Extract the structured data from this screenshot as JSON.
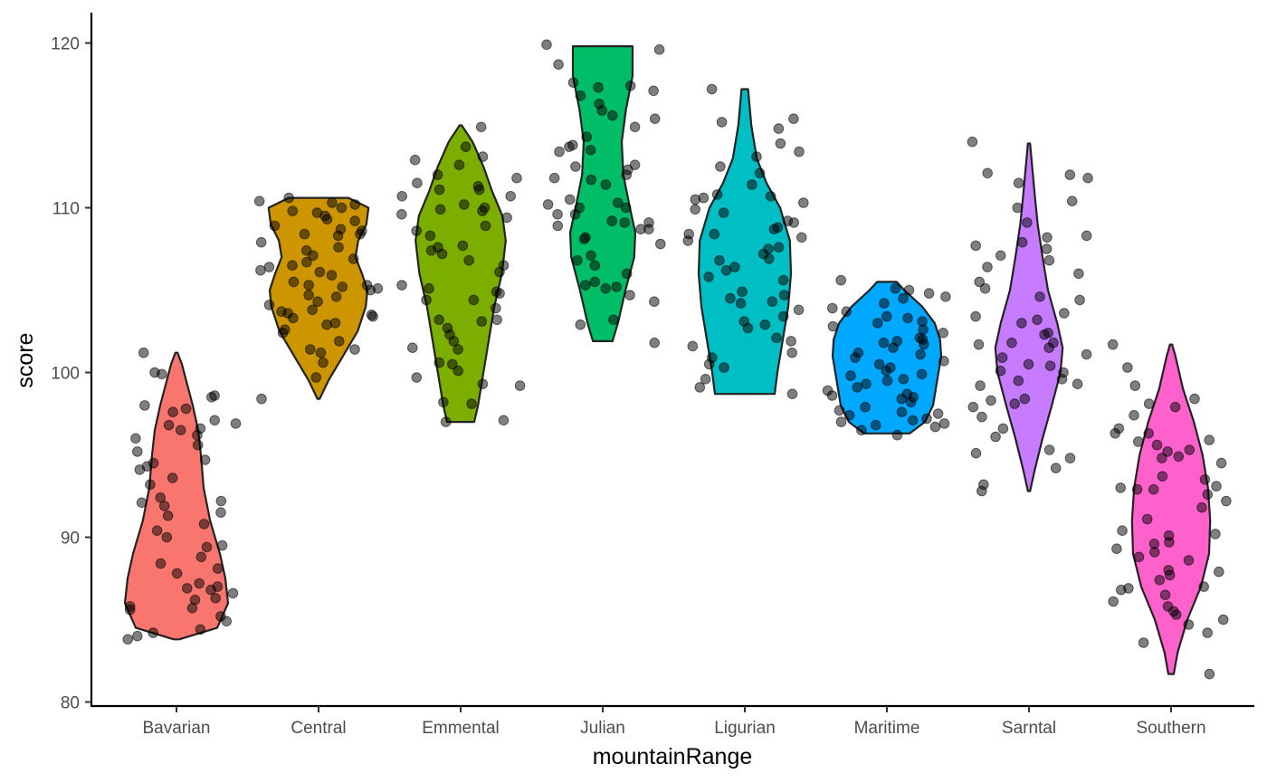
{
  "chart_data": {
    "type": "violin",
    "xlabel": "mountainRange",
    "ylabel": "score",
    "ylim": [
      80,
      120
    ],
    "yticks": [
      80,
      90,
      100,
      110,
      120
    ],
    "categories": [
      "Bavarian",
      "Central",
      "Emmental",
      "Julian",
      "Ligurian",
      "Maritime",
      "Sarntal",
      "Southern"
    ],
    "colors": [
      "#F8766D",
      "#CD9600",
      "#7CAE00",
      "#00BE67",
      "#00BFC4",
      "#00A9FF",
      "#C77CFF",
      "#FF61CC"
    ],
    "grid": false,
    "legend": "none",
    "violins": [
      {
        "min": 83.8,
        "max": 101.2,
        "profile": [
          [
            83.8,
            0.05
          ],
          [
            84.5,
            0.75
          ],
          [
            86,
            0.95
          ],
          [
            87.5,
            0.9
          ],
          [
            89,
            0.8
          ],
          [
            91,
            0.62
          ],
          [
            93,
            0.5
          ],
          [
            95,
            0.45
          ],
          [
            96.5,
            0.4
          ],
          [
            98,
            0.3
          ],
          [
            99.5,
            0.18
          ],
          [
            100.5,
            0.1
          ],
          [
            101.2,
            0.02
          ]
        ]
      },
      {
        "min": 98.4,
        "max": 110.6,
        "profile": [
          [
            98.4,
            0.02
          ],
          [
            99.5,
            0.18
          ],
          [
            101,
            0.45
          ],
          [
            102.5,
            0.72
          ],
          [
            104,
            0.87
          ],
          [
            105,
            0.9
          ],
          [
            106,
            0.8
          ],
          [
            107,
            0.68
          ],
          [
            108,
            0.73
          ],
          [
            109,
            0.88
          ],
          [
            110,
            0.92
          ],
          [
            110.6,
            0.55
          ]
        ]
      },
      {
        "min": 97,
        "max": 115,
        "profile": [
          [
            97,
            0.25
          ],
          [
            98,
            0.32
          ],
          [
            100,
            0.42
          ],
          [
            102,
            0.52
          ],
          [
            104,
            0.62
          ],
          [
            106,
            0.76
          ],
          [
            108,
            0.83
          ],
          [
            109.5,
            0.77
          ],
          [
            111,
            0.58
          ],
          [
            112.5,
            0.42
          ],
          [
            114,
            0.22
          ],
          [
            115,
            0.02
          ]
        ]
      },
      {
        "min": 101.9,
        "max": 119.8,
        "profile": [
          [
            101.9,
            0.18
          ],
          [
            103,
            0.28
          ],
          [
            105,
            0.42
          ],
          [
            107,
            0.58
          ],
          [
            108.5,
            0.6
          ],
          [
            110,
            0.5
          ],
          [
            112,
            0.38
          ],
          [
            114,
            0.35
          ],
          [
            116,
            0.43
          ],
          [
            118,
            0.55
          ],
          [
            119.8,
            0.55
          ]
        ]
      },
      {
        "min": 98.7,
        "max": 117.2,
        "profile": [
          [
            98.7,
            0.55
          ],
          [
            100,
            0.6
          ],
          [
            102,
            0.7
          ],
          [
            104,
            0.8
          ],
          [
            106,
            0.85
          ],
          [
            108,
            0.83
          ],
          [
            110,
            0.65
          ],
          [
            111.5,
            0.4
          ],
          [
            113,
            0.22
          ],
          [
            115,
            0.12
          ],
          [
            117.2,
            0.06
          ]
        ]
      },
      {
        "min": 96.3,
        "max": 105.5,
        "profile": [
          [
            96.3,
            0.42
          ],
          [
            97,
            0.7
          ],
          [
            98,
            0.85
          ],
          [
            99,
            0.9
          ],
          [
            100,
            0.95
          ],
          [
            101,
            1.0
          ],
          [
            102,
            0.98
          ],
          [
            103,
            0.88
          ],
          [
            104,
            0.65
          ],
          [
            105,
            0.32
          ],
          [
            105.5,
            0.18
          ]
        ]
      },
      {
        "min": 92.8,
        "max": 113.9,
        "profile": [
          [
            92.8,
            0.02
          ],
          [
            94,
            0.1
          ],
          [
            96,
            0.25
          ],
          [
            98,
            0.42
          ],
          [
            100,
            0.58
          ],
          [
            101.5,
            0.62
          ],
          [
            103,
            0.52
          ],
          [
            105,
            0.35
          ],
          [
            107,
            0.25
          ],
          [
            109,
            0.16
          ],
          [
            111,
            0.1
          ],
          [
            113.9,
            0.02
          ]
        ]
      },
      {
        "min": 81.7,
        "max": 101.7,
        "profile": [
          [
            81.7,
            0.05
          ],
          [
            83,
            0.12
          ],
          [
            85,
            0.3
          ],
          [
            87,
            0.55
          ],
          [
            89,
            0.7
          ],
          [
            91,
            0.72
          ],
          [
            93,
            0.68
          ],
          [
            95,
            0.58
          ],
          [
            97,
            0.42
          ],
          [
            99,
            0.22
          ],
          [
            101,
            0.08
          ],
          [
            101.7,
            0.02
          ]
        ]
      }
    ],
    "points": [
      [
        [
          86.2,
          84.2,
          85.7,
          96.9,
          95.6,
          96.2,
          84,
          89.5,
          88.8,
          86.3,
          94.7,
          90.4,
          98.5,
          94.1,
          97.8,
          98,
          92.1,
          86.8,
          91.5,
          87,
          85.6,
          97.6,
          90.8,
          92.4,
          93.2,
          88.4,
          84.9,
          85.2,
          90,
          91.3,
          97.1,
          95.2,
          96,
          100,
          99.9,
          87.8,
          86.6,
          93.6,
          89.4,
          101.2,
          96.8,
          92.2,
          98.6,
          94.5,
          96.5,
          88.1,
          84.4,
          85.8,
          86.9,
          83.8,
          87.2,
          91.9,
          96.6,
          94.3
        ]
      ],
      [
        [
          108.4,
          106.7,
          105.3,
          103.5,
          101.4,
          98.4,
          110.6,
          108.9,
          107.6,
          110.4,
          103.3,
          106.5,
          104.7,
          102.6,
          101.4,
          99.7,
          100.6,
          108.4,
          110.3,
          105.2,
          107.9,
          109.5,
          103.8,
          106.1,
          108.3,
          105.5,
          109.7,
          103.4,
          102.4,
          101.2,
          105.3,
          105.9,
          106.2,
          103,
          104.6,
          107.4,
          110.2,
          108.7,
          109.8,
          106.9,
          105.1,
          104.3,
          103.7,
          102.9,
          101.9,
          108.6,
          109.3,
          110,
          106.4,
          105,
          104.1,
          103.6,
          107.1,
          109.2
        ]
      ],
      [
        [
          107.6,
          106.5,
          105.1,
          103.2,
          102.3,
          100.5,
          110.7,
          111.1,
          108.9,
          104.8,
          103.9,
          99.2,
          98.1,
          97.1,
          112,
          109.6,
          107.4,
          110.2,
          111.3,
          113.1,
          114.9,
          112.6,
          111.1,
          110.7,
          109.8,
          108.6,
          106.8,
          104.4,
          103.1,
          101.9,
          100.6,
          99.3,
          98.2,
          97,
          108.3,
          109.9,
          112.9,
          113.7,
          111.8,
          110,
          107.7,
          106.1,
          104.9,
          103.2,
          101.4,
          100.1,
          111.5,
          109.4,
          107.2,
          105.3,
          104.4,
          102.7,
          101.5,
          99.7
        ]
      ],
      [
        [
          109.6,
          108.9,
          112.6,
          112.3,
          106,
          105.3,
          113.7,
          116.3,
          117.1,
          116.8,
          111.8,
          109.1,
          108.2,
          107.8,
          110.5,
          113.8,
          115.6,
          119.6,
          117.6,
          117.4,
          110,
          108.7,
          106.8,
          105.1,
          104.7,
          111.4,
          110,
          109.1,
          112.5,
          113.4,
          114.9,
          119.9,
          118.7,
          115.9,
          117.3,
          114.3,
          112,
          110.3,
          109.2,
          108.1,
          106.5,
          105.5,
          103.2,
          102.9,
          101.8,
          104.3,
          105.2,
          107.1,
          108.7,
          109.6,
          110.2,
          111.7,
          113.5,
          115.4
        ]
      ],
      [
        [
          108.2,
          108.4,
          106.4,
          104.5,
          99.6,
          98.7,
          112.5,
          113.4,
          110.7,
          110.3,
          107.6,
          104.2,
          102.9,
          101.2,
          115.2,
          114.8,
          113.1,
          112.1,
          111.4,
          110.5,
          109.1,
          108.7,
          108,
          107.2,
          106.8,
          105.6,
          104.3,
          103.8,
          102.7,
          101.9,
          100.5,
          99.1,
          117.2,
          115.4,
          113.9,
          110.8,
          109.7,
          109.2,
          108.8,
          107.5,
          106.9,
          105.8,
          104.7,
          103.4,
          102.1,
          100.9,
          110.6,
          109.9,
          108.4,
          106.2,
          104.9,
          103.1,
          101.6,
          100.3
        ]
      ],
      [
        [
          97.6,
          96.7,
          97.4,
          98.6,
          99.1,
          101.1,
          103.4,
          104.5,
          105.1,
          105.6,
          101.7,
          100.5,
          99.6,
          98.4,
          97.9,
          97,
          96.2,
          101.5,
          102.1,
          103,
          103.9,
          104.6,
          103.1,
          102,
          100.9,
          99.8,
          98.7,
          97.5,
          96.8,
          101.8,
          102.4,
          103.3,
          104.2,
          105,
          100.3,
          99.5,
          98.2,
          97.1,
          96.5,
          101.2,
          102.8,
          103.7,
          104.8,
          100.1,
          99.3,
          98.9,
          97.7,
          96.9,
          102.6,
          101.9,
          100.7,
          99.9,
          98.5,
          97.2
        ]
      ],
      [
        [
          108.3,
          107.5,
          106.8,
          105.1,
          103.6,
          101.8,
          101.5,
          100.5,
          99.3,
          98.4,
          97.9,
          95.3,
          93.2,
          112.1,
          111.8,
          110,
          107.9,
          107.7,
          104.4,
          103,
          102.3,
          101.1,
          100,
          99.6,
          98.1,
          96.1,
          94.2,
          95.1,
          114,
          112,
          111.5,
          110.4,
          108.2,
          107.1,
          106.4,
          105.5,
          104.6,
          103.2,
          102.4,
          101.7,
          100.9,
          100.1,
          99.2,
          98.3,
          97.3,
          96.6,
          94.8,
          92.8,
          109.1,
          106,
          103.4,
          101.8,
          100.4,
          99.5
        ]
      ],
      [
        [
          101.7,
          100.3,
          99.2,
          98.4,
          95.9,
          95.3,
          92.9,
          90.1,
          88.8,
          87,
          86.1,
          83.6,
          96.3,
          95.6,
          94.8,
          93.7,
          93,
          89.3,
          87.9,
          86.8,
          85.5,
          85,
          84.2,
          97.4,
          96.6,
          95.8,
          94.5,
          93.5,
          92.9,
          92.2,
          91.1,
          90.4,
          89.6,
          88.6,
          87.7,
          86.5,
          85.8,
          84.7,
          97.9,
          96.3,
          94.9,
          93.1,
          91.8,
          90.2,
          89.1,
          88,
          86.9,
          85.3,
          98.1,
          95.2,
          92.6,
          89.7,
          87.4,
          81.7
        ]
      ]
    ]
  }
}
